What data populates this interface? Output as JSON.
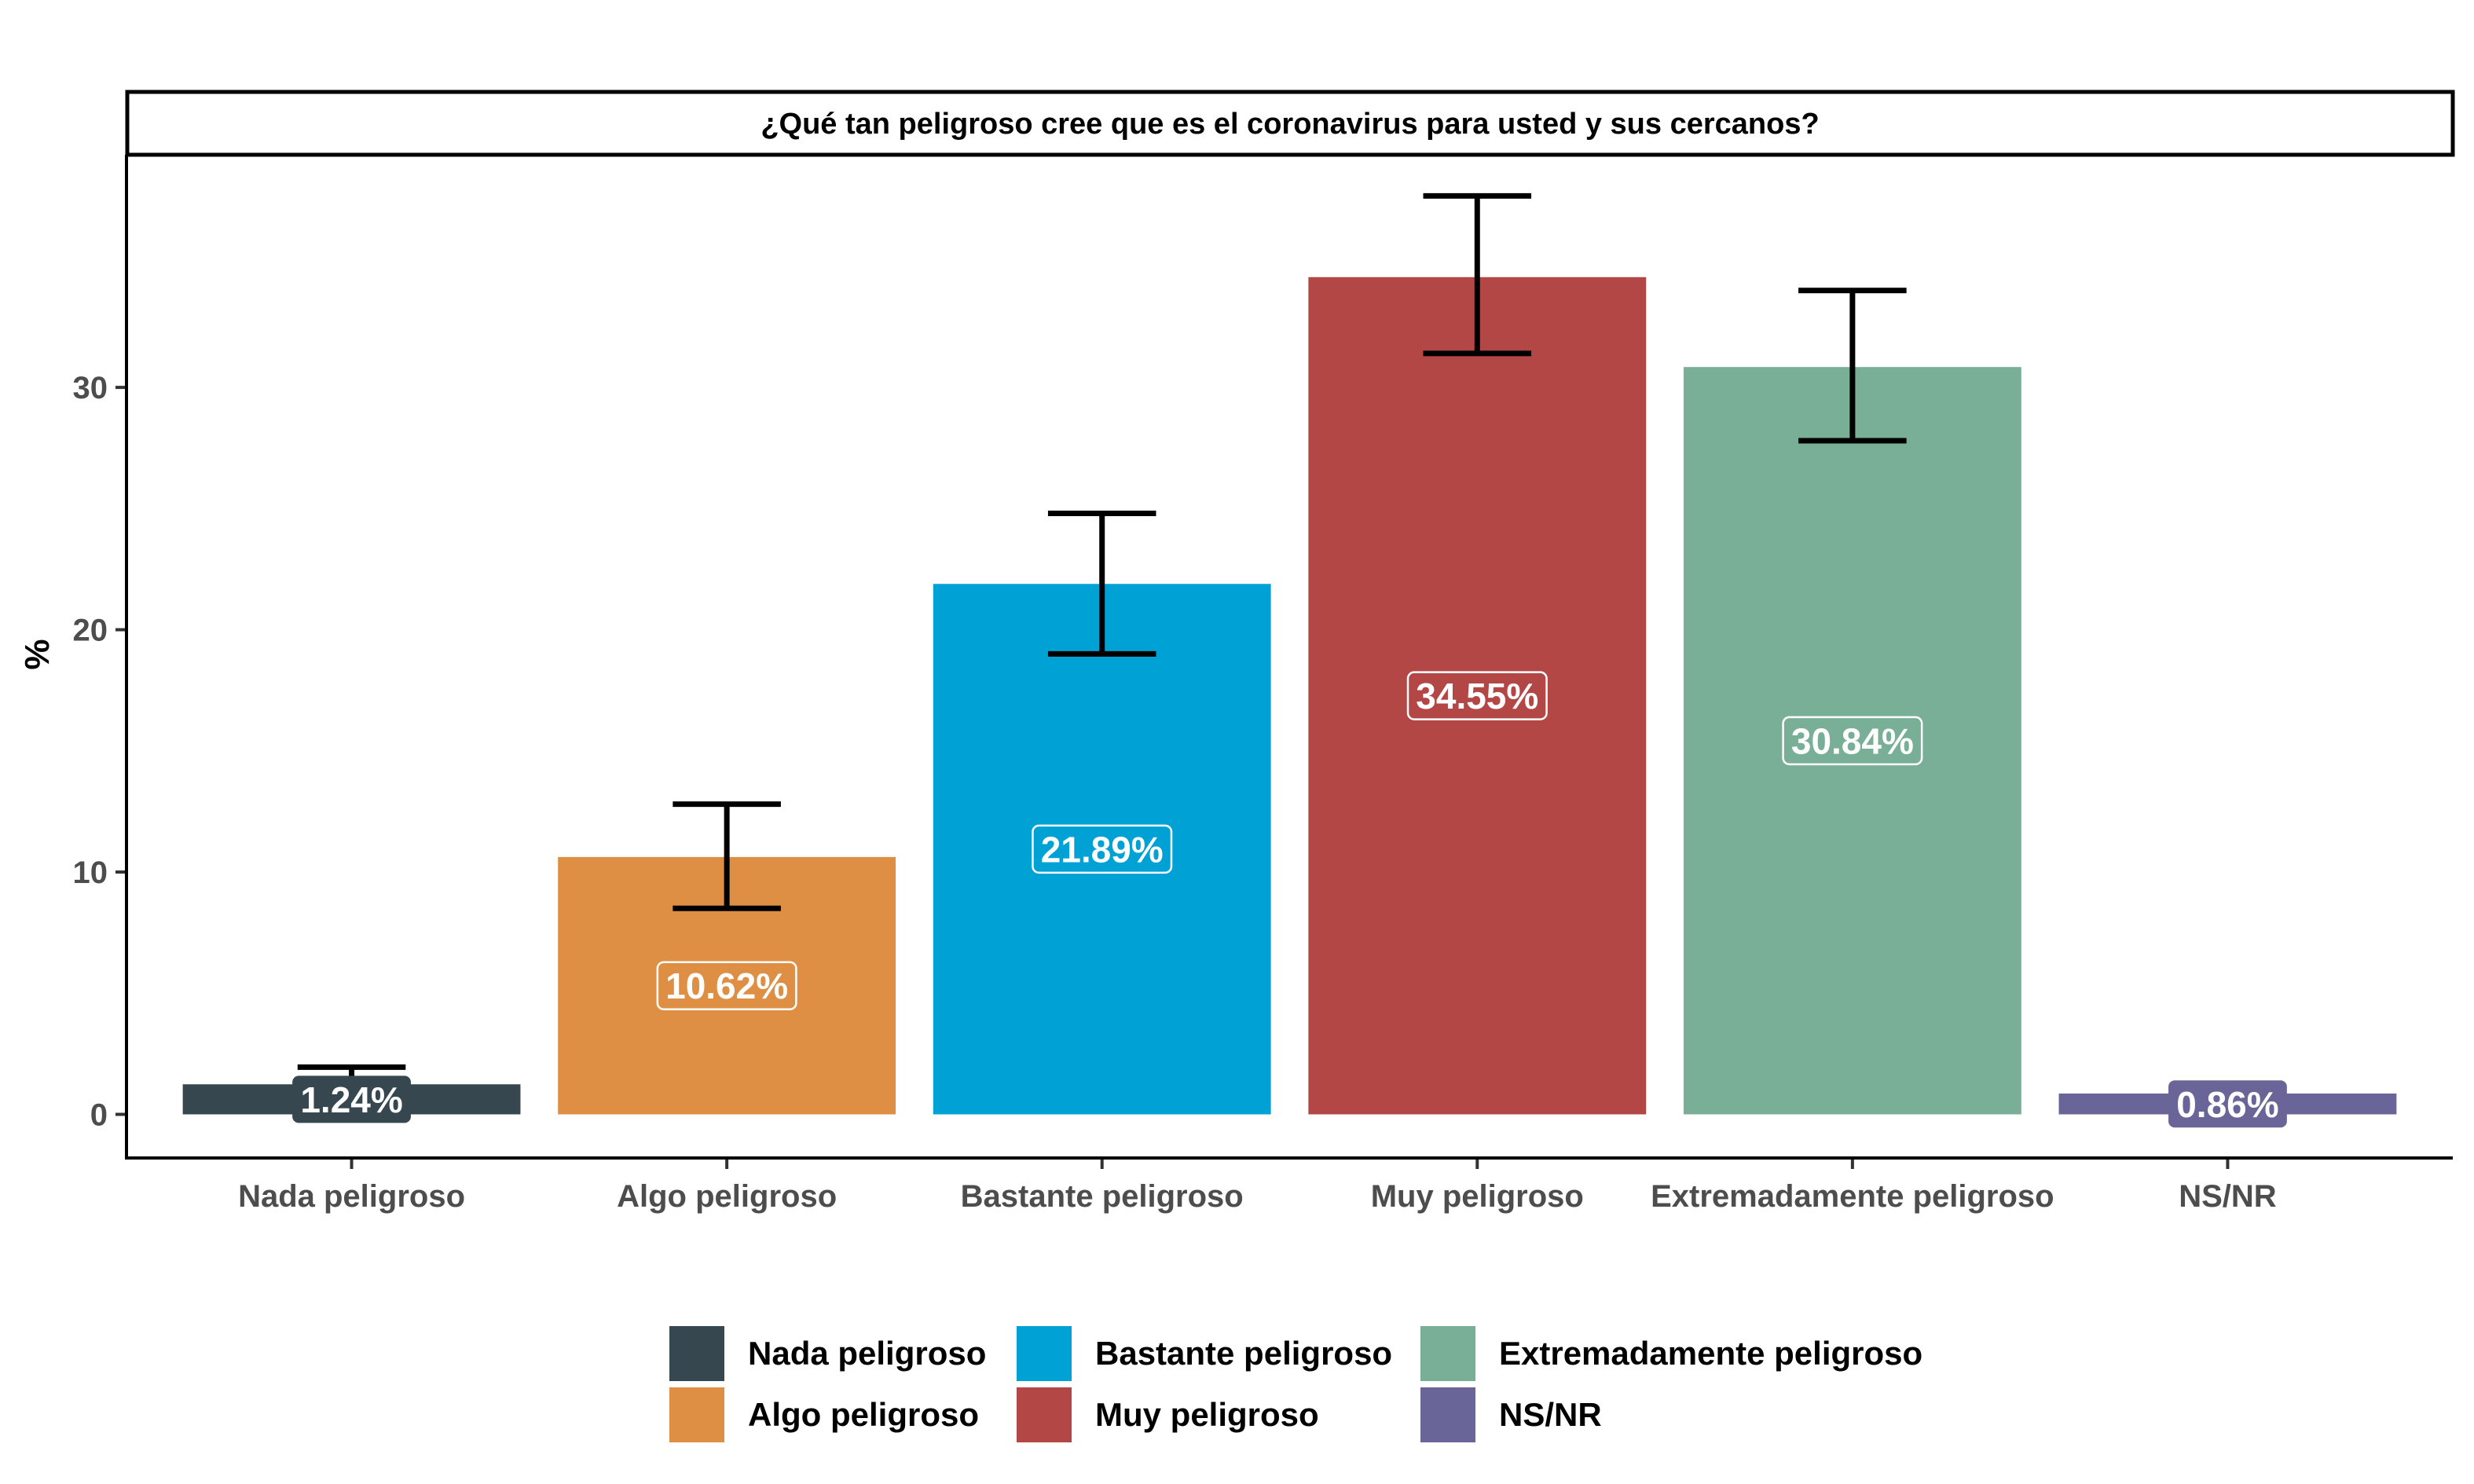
{
  "chart_data": {
    "type": "bar",
    "title": "¿Qué tan peligroso cree que es el coronavirus para usted y sus cercanos?",
    "xlabel": "",
    "ylabel": "%",
    "ylim": [
      -1.8,
      39.6
    ],
    "yticks": [
      0,
      10,
      20,
      30
    ],
    "grid": false,
    "legend_position": "bottom",
    "categories": [
      "Nada peligroso",
      "Algo peligroso",
      "Bastante peligroso",
      "Muy peligroso",
      "Extremadamente peligroso",
      "NS/NR"
    ],
    "values": [
      1.24,
      10.62,
      21.89,
      34.55,
      30.84,
      0.86
    ],
    "labels": [
      "1.24%",
      "10.62%",
      "21.89%",
      "34.55%",
      "30.84%",
      "0.86%"
    ],
    "error_low": [
      1.24,
      8.5,
      19.0,
      31.4,
      27.8,
      null
    ],
    "error_high": [
      1.95,
      12.8,
      24.8,
      37.9,
      34.0,
      null
    ],
    "colors": [
      "#37474f",
      "#df8f44",
      "#00a1d5",
      "#b24745",
      "#79af97",
      "#6a6599"
    ],
    "legend": {
      "rows": [
        [
          "Nada peligroso",
          "Bastante peligroso",
          "Extremadamente peligroso"
        ],
        [
          "Algo peligroso",
          "Muy peligroso",
          "NS/NR"
        ]
      ]
    }
  }
}
